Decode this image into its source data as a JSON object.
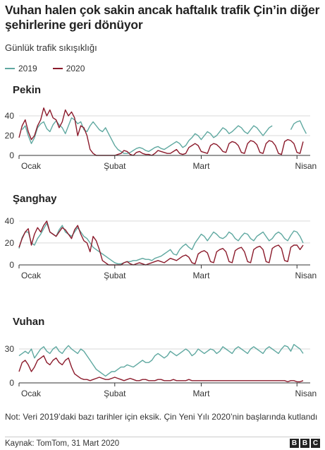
{
  "header": {
    "title": "Vuhan halen çok sakin ancak haftalık trafik Çin’in diğer şehirlerine geri dönüyor",
    "subtitle": "Günlük trafik sıkışıklığı"
  },
  "legend": [
    {
      "label": "2019",
      "color": "#5fa8a0"
    },
    {
      "label": "2020",
      "color": "#8b1a2b"
    }
  ],
  "colors": {
    "s2019": "#5fa8a0",
    "s2020": "#8b1a2b",
    "grid": "#d9d9d9",
    "axis": "#333333"
  },
  "chart_data": [
    {
      "type": "line",
      "title": "Pekin",
      "xlabel": "",
      "ylabel": "",
      "x_tick_labels": [
        "Ocak",
        "Şubat",
        "Mart",
        "Nisan"
      ],
      "x_tick_days": [
        1,
        32,
        60,
        91
      ],
      "y_ticks": [
        0,
        20,
        40
      ],
      "ylim": [
        0,
        50
      ],
      "grid": true,
      "series": [
        {
          "name": "2019",
          "values": [
            null,
            26,
            30,
            20,
            12,
            18,
            28,
            32,
            34,
            27,
            24,
            31,
            35,
            31,
            28,
            22,
            30,
            38,
            36,
            32,
            34,
            26,
            24,
            30,
            34,
            30,
            26,
            24,
            28,
            22,
            16,
            10,
            6,
            4,
            2,
            2,
            3,
            5,
            7,
            8,
            7,
            5,
            4,
            6,
            8,
            9,
            7,
            6,
            8,
            10,
            12,
            14,
            12,
            8,
            10,
            15,
            18,
            22,
            20,
            16,
            20,
            24,
            22,
            18,
            20,
            24,
            28,
            26,
            22,
            24,
            27,
            30,
            28,
            24,
            22,
            26,
            30,
            28,
            24,
            20,
            24,
            28,
            30,
            null,
            null,
            null,
            null,
            null,
            26,
            32,
            34,
            35,
            28,
            22
          ]
        },
        {
          "name": "2020",
          "values": [
            18,
            30,
            36,
            24,
            16,
            20,
            30,
            36,
            48,
            40,
            46,
            38,
            36,
            28,
            34,
            46,
            40,
            44,
            38,
            20,
            30,
            28,
            20,
            6,
            2,
            0,
            0,
            0,
            0,
            0,
            0,
            0,
            1,
            2,
            5,
            4,
            1,
            0,
            3,
            4,
            2,
            1,
            1,
            0,
            2,
            5,
            4,
            3,
            2,
            2,
            4,
            6,
            2,
            1,
            2,
            8,
            10,
            12,
            10,
            4,
            3,
            2,
            10,
            12,
            11,
            8,
            4,
            3,
            12,
            14,
            13,
            10,
            3,
            2,
            12,
            15,
            14,
            11,
            3,
            2,
            12,
            15,
            14,
            10,
            2,
            1,
            14,
            16,
            15,
            12,
            3,
            2,
            14
          ]
        }
      ]
    },
    {
      "type": "line",
      "title": "Şanghay",
      "xlabel": "",
      "ylabel": "",
      "x_tick_labels": [
        "Ocak",
        "Şubat",
        "Mart",
        "Nisan"
      ],
      "x_tick_days": [
        1,
        32,
        60,
        91
      ],
      "y_ticks": [
        0,
        20,
        40
      ],
      "ylim": [
        0,
        47
      ],
      "grid": true,
      "series": [
        {
          "name": "2019",
          "values": [
            15,
            25,
            30,
            30,
            20,
            18,
            24,
            28,
            33,
            38,
            30,
            28,
            26,
            32,
            36,
            30,
            28,
            26,
            30,
            34,
            30,
            26,
            24,
            20,
            16,
            14,
            12,
            10,
            8,
            6,
            4,
            2,
            1,
            1,
            2,
            3,
            3,
            4,
            4,
            5,
            6,
            5,
            5,
            4,
            6,
            7,
            8,
            10,
            12,
            14,
            10,
            9,
            14,
            17,
            19,
            16,
            14,
            20,
            24,
            28,
            26,
            22,
            26,
            30,
            28,
            25,
            24,
            26,
            30,
            28,
            24,
            22,
            26,
            29,
            28,
            24,
            22,
            26,
            28,
            30,
            26,
            22,
            24,
            28,
            30,
            28,
            24,
            22,
            27,
            31,
            30,
            26,
            20
          ]
        },
        {
          "name": "2020",
          "values": [
            16,
            24,
            30,
            33,
            18,
            28,
            34,
            30,
            36,
            40,
            30,
            28,
            26,
            30,
            34,
            32,
            28,
            24,
            32,
            36,
            28,
            22,
            20,
            12,
            26,
            22,
            14,
            4,
            2,
            0,
            0,
            0,
            0,
            0,
            2,
            3,
            1,
            0,
            1,
            2,
            1,
            0,
            1,
            2,
            3,
            4,
            3,
            2,
            4,
            6,
            5,
            4,
            6,
            8,
            9,
            7,
            2,
            1,
            10,
            12,
            13,
            11,
            3,
            2,
            12,
            14,
            15,
            12,
            3,
            2,
            13,
            15,
            16,
            12,
            3,
            2,
            14,
            16,
            17,
            14,
            3,
            2,
            15,
            17,
            18,
            15,
            4,
            3,
            16,
            18,
            18,
            14,
            18
          ]
        }
      ]
    },
    {
      "type": "line",
      "title": "Vuhan",
      "xlabel": "",
      "ylabel": "",
      "x_tick_labels": [
        "Ocak",
        "Şubat",
        "Mart",
        "Nisan"
      ],
      "x_tick_days": [
        1,
        32,
        60,
        91
      ],
      "y_ticks": [
        0,
        30
      ],
      "ylim": [
        0,
        40
      ],
      "grid": true,
      "series": [
        {
          "name": "2019",
          "values": [
            24,
            26,
            28,
            26,
            30,
            22,
            26,
            30,
            32,
            28,
            26,
            30,
            32,
            28,
            26,
            30,
            33,
            30,
            28,
            26,
            30,
            28,
            24,
            20,
            16,
            12,
            10,
            8,
            6,
            8,
            10,
            10,
            12,
            14,
            14,
            16,
            15,
            14,
            16,
            18,
            20,
            18,
            18,
            20,
            24,
            26,
            24,
            22,
            24,
            28,
            26,
            24,
            26,
            28,
            30,
            28,
            24,
            26,
            30,
            28,
            26,
            28,
            30,
            29,
            26,
            28,
            32,
            30,
            28,
            26,
            30,
            32,
            30,
            28,
            26,
            30,
            32,
            30,
            28,
            26,
            30,
            32,
            30,
            28,
            26,
            30,
            33,
            32,
            28,
            34,
            32,
            30,
            26
          ]
        },
        {
          "name": "2020",
          "values": [
            10,
            18,
            20,
            16,
            10,
            14,
            20,
            22,
            24,
            18,
            16,
            20,
            22,
            18,
            16,
            20,
            22,
            14,
            8,
            6,
            4,
            3,
            3,
            2,
            3,
            4,
            5,
            4,
            3,
            3,
            4,
            5,
            4,
            3,
            2,
            3,
            4,
            3,
            2,
            2,
            3,
            3,
            2,
            2,
            2,
            3,
            3,
            2,
            2,
            2,
            3,
            2,
            2,
            2,
            2,
            3,
            2,
            2,
            2,
            2,
            2,
            2,
            2,
            2,
            2,
            2,
            2,
            2,
            2,
            2,
            2,
            2,
            2,
            2,
            2,
            2,
            2,
            2,
            2,
            2,
            2,
            2,
            2,
            2,
            2,
            2,
            2,
            1,
            2,
            2,
            1,
            1,
            2
          ]
        }
      ]
    }
  ],
  "footer": {
    "note": "Not: Veri 2019’daki bazı tarihler için eksik. Çin Yeni Yılı 2020’nin başlarında kutlandı",
    "source": "Kaynak: TomTom, 31 Mart 2020",
    "logo": [
      "B",
      "B",
      "C"
    ]
  }
}
